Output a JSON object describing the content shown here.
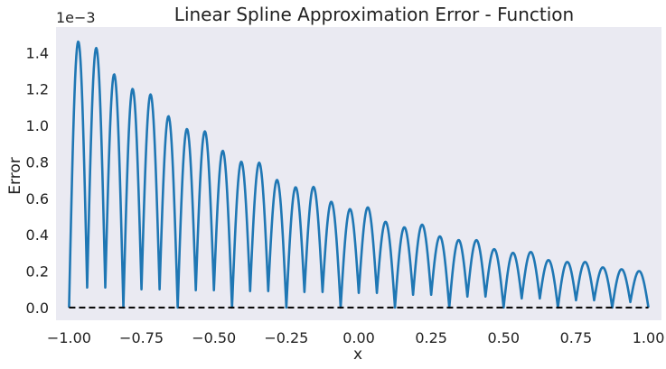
{
  "chart_data": {
    "type": "line",
    "title": "Linear Spline Approximation Error - Function",
    "xlabel": "x",
    "ylabel": "Error",
    "y_offset_label": "1e−3",
    "xlim": [
      -1.045,
      1.045
    ],
    "ylim": [
      -7e-05,
      0.00154
    ],
    "grid": false,
    "x_ticks": [
      -1.0,
      -0.75,
      -0.5,
      -0.25,
      0.0,
      0.25,
      0.5,
      0.75,
      1.0
    ],
    "x_tick_labels": [
      "−1.00",
      "−0.75",
      "−0.50",
      "−0.25",
      "0.00",
      "0.25",
      "0.50",
      "0.75",
      "1.00"
    ],
    "y_ticks": [
      0.0,
      0.0002,
      0.0004,
      0.0006,
      0.0008,
      0.001,
      0.0012,
      0.0014
    ],
    "y_tick_labels": [
      "0.0",
      "0.2",
      "0.4",
      "0.6",
      "0.8",
      "1.0",
      "1.2",
      "1.4"
    ],
    "series": [
      {
        "name": "error",
        "style": "solid",
        "color": "#1f77b4",
        "interval_width": 0.0625,
        "interval_start": -1.0,
        "x_range": [
          -1.0,
          1.0
        ],
        "arch_peaks": [
          0.00146,
          0.00137,
          0.00128,
          0.0012,
          0.00112,
          0.00105,
          0.00098,
          0.00092,
          0.00086,
          0.0008,
          0.00075,
          0.0007,
          0.00066,
          0.00062,
          0.00058,
          0.00054,
          0.00051,
          0.00047,
          0.00044,
          0.00042,
          0.00039,
          0.00037,
          0.00034,
          0.00032,
          0.0003,
          0.00028,
          0.00026,
          0.00025,
          0.00023,
          0.00022,
          0.00021,
          0.0002
        ],
        "knot_values": [
          0.0,
          0.00011,
          0.00011,
          0.0,
          0.0001,
          0.0001,
          0.0,
          9.5e-05,
          9.5e-05,
          0.0,
          9e-05,
          9e-05,
          0.0,
          8.5e-05,
          8.5e-05,
          0.0,
          8e-05,
          8e-05,
          0.0,
          7e-05,
          7e-05,
          0.0,
          6e-05,
          6e-05,
          0.0,
          5e-05,
          5e-05,
          0.0,
          4e-05,
          4e-05,
          0.0,
          3e-05,
          0.0
        ]
      },
      {
        "name": "zero",
        "style": "dashed",
        "color": "#000000",
        "x": [
          -1.0,
          1.0
        ],
        "y": [
          0.0,
          0.0
        ]
      }
    ],
    "colors": {
      "plot_background": "#eaeaf2",
      "page_background": "#ffffff",
      "text": "#222222"
    }
  }
}
